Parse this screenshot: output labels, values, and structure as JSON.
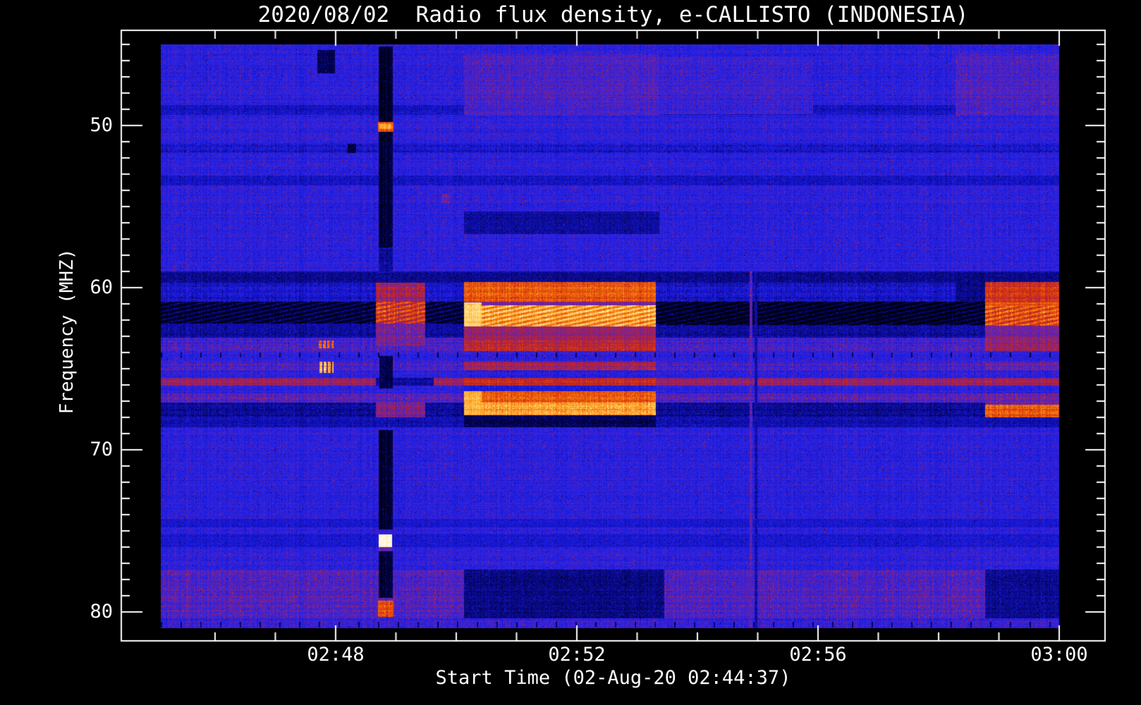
{
  "figure": {
    "background": "#000000",
    "text_color": "#ffffff"
  },
  "chart_data": {
    "type": "heatmap",
    "subtype": "radio-spectrogram",
    "title": "2020/08/02  Radio flux density, e-CALLISTO (INDONESIA)",
    "xlabel": "Start Time (02-Aug-20 02:44:37)",
    "ylabel": "Frequency (MHZ)",
    "legend_position": "none",
    "grid": false,
    "x_axis": {
      "unit": "minutes_after_0200",
      "range_min": [
        45.1,
        60.0
      ],
      "ticks": [
        {
          "t": 48,
          "label": "02:48"
        },
        {
          "t": 52,
          "label": "02:52"
        },
        {
          "t": 56,
          "label": "02:56"
        },
        {
          "t": 60,
          "label": "03:00"
        }
      ],
      "minor_tick_interval_min": 1
    },
    "y_axis": {
      "range_mhz": [
        45.0,
        81.0
      ],
      "inverted": true,
      "ticks": [
        {
          "f": 50,
          "label": "50"
        },
        {
          "f": 60,
          "label": "60"
        },
        {
          "f": 70,
          "label": "70"
        },
        {
          "f": 80,
          "label": "80"
        }
      ],
      "minor_tick_interval_mhz": 1
    },
    "background_level": 0.4,
    "palette": {
      "stops": [
        [
          0.0,
          "#000000"
        ],
        [
          0.1,
          "#00003a"
        ],
        [
          0.2,
          "#0a0a8a"
        ],
        [
          0.3,
          "#1515cf"
        ],
        [
          0.4,
          "#2424ea"
        ],
        [
          0.48,
          "#4a22c8"
        ],
        [
          0.56,
          "#7a2298"
        ],
        [
          0.63,
          "#aa2248"
        ],
        [
          0.69,
          "#cc2418"
        ],
        [
          0.77,
          "#e24808"
        ],
        [
          0.85,
          "#f07010"
        ],
        [
          0.92,
          "#ff9820"
        ],
        [
          0.98,
          "#ffc850"
        ],
        [
          1.05,
          "#ffeeb0"
        ],
        [
          1.1,
          "#ffffff"
        ]
      ]
    },
    "artifact_dash_rows": [
      {
        "f0": 64.0,
        "f1": 64.3
      },
      {
        "f0": 80.6,
        "f1": 80.95
      }
    ],
    "features": [
      {
        "label": "row-48.9-dark",
        "t0": 45.1,
        "t1": 60,
        "f0": 48.75,
        "f1": 49.35,
        "v": 0.3,
        "n": 0.1
      },
      {
        "label": "row-51.4-speckle",
        "t0": 45.1,
        "t1": 60,
        "f0": 51.15,
        "f1": 51.7,
        "v": 0.31,
        "n": 0.14
      },
      {
        "label": "row-53.4-dark",
        "t0": 45.1,
        "t1": 60,
        "f0": 53.1,
        "f1": 53.7,
        "v": 0.29,
        "n": 0.1
      },
      {
        "label": "band-59.3-dark",
        "t0": 45.1,
        "t1": 60,
        "f0": 59.0,
        "f1": 59.7,
        "v": 0.21,
        "n": 0.08
      },
      {
        "label": "band-60.3",
        "t0": 45.1,
        "t1": 60,
        "f0": 59.7,
        "f1": 60.87,
        "v": 0.31,
        "n": 0.14
      },
      {
        "label": "rfi-61.5-black",
        "t0": 45.1,
        "t1": 60,
        "f0": 60.87,
        "f1": 62.2,
        "v": 0.1,
        "n": 0.06,
        "fx": "wave"
      },
      {
        "label": "band-62.6-dark",
        "t0": 45.1,
        "t1": 60,
        "f0": 62.2,
        "f1": 63.1,
        "v": 0.23,
        "n": 0.1
      },
      {
        "label": "band-63.5-mix",
        "t0": 45.1,
        "t1": 60,
        "f0": 63.1,
        "f1": 63.9,
        "v": 0.45,
        "n": 0.16
      },
      {
        "label": "band-64.8-mix",
        "t0": 45.1,
        "t1": 60,
        "f0": 64.55,
        "f1": 65.1,
        "v": 0.46,
        "n": 0.15
      },
      {
        "label": "rfi-65.8-red",
        "t0": 45.1,
        "t1": 60,
        "f0": 65.55,
        "f1": 66.05,
        "v": 0.6,
        "n": 0.13
      },
      {
        "label": "band-66.8-mix",
        "t0": 45.1,
        "t1": 60,
        "f0": 66.5,
        "f1": 67.1,
        "v": 0.48,
        "n": 0.15
      },
      {
        "label": "band-67.5-dark",
        "t0": 45.1,
        "t1": 60,
        "f0": 67.1,
        "f1": 67.95,
        "v": 0.21,
        "n": 0.1
      },
      {
        "label": "band-68.3-dark",
        "t0": 45.1,
        "t1": 60,
        "f0": 67.95,
        "f1": 68.6,
        "v": 0.26,
        "n": 0.09
      },
      {
        "label": "row-74.5-dark",
        "t0": 45.1,
        "t1": 60,
        "f0": 74.25,
        "f1": 74.8,
        "v": 0.31,
        "n": 0.08
      },
      {
        "label": "row-75.6-dark",
        "t0": 45.1,
        "t1": 60,
        "f0": 75.2,
        "f1": 76.0,
        "v": 0.32,
        "n": 0.08
      },
      {
        "label": "band-78.9-purple",
        "t0": 45.1,
        "t1": 60,
        "f0": 77.4,
        "f1": 80.4,
        "v": 0.48,
        "n": 0.14
      },
      {
        "label": "band-80.7",
        "t0": 45.1,
        "t1": 60,
        "f0": 80.4,
        "f1": 81.0,
        "v": 0.42,
        "n": 0.14
      },
      {
        "label": "top-purple-burst",
        "t0": 50.13,
        "t1": 53.37,
        "f0": 45.55,
        "f1": 49.4,
        "v": 0.47,
        "n": 0.12
      },
      {
        "label": "top-purple-mid",
        "t0": 53.37,
        "t1": 55.92,
        "f0": 45.8,
        "f1": 49.3,
        "v": 0.44,
        "n": 0.12
      },
      {
        "label": "top-purple-right",
        "t0": 58.28,
        "t1": 60,
        "f0": 45.55,
        "f1": 49.4,
        "v": 0.47,
        "n": 0.12
      },
      {
        "label": "dark-56-burst-col",
        "t0": 50.13,
        "t1": 53.37,
        "f0": 55.3,
        "f1": 56.7,
        "v": 0.23,
        "n": 0.08
      },
      {
        "label": "dark-bottom-burst-col",
        "t0": 50.13,
        "t1": 53.45,
        "f0": 77.4,
        "f1": 80.4,
        "v": 0.19,
        "n": 0.08
      },
      {
        "label": "dark-bottom-right",
        "t0": 58.77,
        "t1": 60,
        "f0": 77.4,
        "f1": 80.4,
        "v": 0.21,
        "n": 0.08
      },
      {
        "label": "rfi-extra-dark-mid",
        "t0": 53.37,
        "t1": 58.28,
        "f0": 60.87,
        "f1": 62.3,
        "v": 0.07,
        "n": 0.05,
        "fx": "wave"
      },
      {
        "label": "preburst-blob-60.3",
        "t0": 48.67,
        "t1": 49.49,
        "f0": 59.7,
        "f1": 60.87,
        "v": 0.62,
        "n": 0.15
      },
      {
        "label": "preburst-blob-61.5",
        "t0": 48.67,
        "t1": 49.49,
        "f0": 60.87,
        "f1": 62.2,
        "v": 0.72,
        "n": 0.18,
        "fx": "wave"
      },
      {
        "label": "preburst-blob-62.6",
        "t0": 48.67,
        "t1": 49.49,
        "f0": 62.2,
        "f1": 63.1,
        "v": 0.54,
        "n": 0.12
      },
      {
        "label": "preburst-blob-63.3",
        "t0": 48.67,
        "t1": 49.49,
        "f0": 63.1,
        "f1": 63.6,
        "v": 0.55,
        "n": 0.15
      },
      {
        "label": "preburst-blob-67.5",
        "t0": 48.67,
        "t1": 49.49,
        "f0": 67.1,
        "f1": 68.0,
        "v": 0.55,
        "n": 0.15
      },
      {
        "label": "redline-gap-dark",
        "t0": 48.67,
        "t1": 49.63,
        "f0": 65.55,
        "f1": 66.05,
        "v": 0.23,
        "n": 0.1
      },
      {
        "label": "burst-60.3",
        "t0": 50.13,
        "t1": 53.31,
        "f0": 59.67,
        "f1": 60.85,
        "v": 0.8,
        "n": 0.14
      },
      {
        "label": "burst-61.0-darkline",
        "t0": 50.13,
        "t1": 53.31,
        "f0": 60.85,
        "f1": 61.1,
        "v": 0.55,
        "n": 0.1
      },
      {
        "label": "burst-61.8-bright",
        "t0": 50.13,
        "t1": 53.31,
        "f0": 61.1,
        "f1": 62.4,
        "v": 0.92,
        "n": 0.12,
        "fx": "wave"
      },
      {
        "label": "burst-62.8-maroon",
        "t0": 50.13,
        "t1": 53.31,
        "f0": 62.4,
        "f1": 63.2,
        "v": 0.6,
        "n": 0.12
      },
      {
        "label": "burst-63.5",
        "t0": 50.13,
        "t1": 53.31,
        "f0": 63.2,
        "f1": 63.9,
        "v": 0.66,
        "n": 0.14
      },
      {
        "label": "burst-64.2-gap",
        "t0": 50.13,
        "t1": 53.31,
        "f0": 63.9,
        "f1": 64.55,
        "v": 0.4,
        "n": 0.14
      },
      {
        "label": "burst-64.8",
        "t0": 50.13,
        "t1": 53.31,
        "f0": 64.55,
        "f1": 65.1,
        "v": 0.62,
        "n": 0.14
      },
      {
        "label": "burst-65.3-gap",
        "t0": 50.13,
        "t1": 53.31,
        "f0": 65.1,
        "f1": 65.55,
        "v": 0.38,
        "n": 0.12
      },
      {
        "label": "burst-65.8",
        "t0": 50.13,
        "t1": 53.31,
        "f0": 65.55,
        "f1": 66.05,
        "v": 0.68,
        "n": 0.13
      },
      {
        "label": "burst-66.2-gap",
        "t0": 50.13,
        "t1": 53.31,
        "f0": 66.05,
        "f1": 66.4,
        "v": 0.35,
        "n": 0.12
      },
      {
        "label": "burst-66.8",
        "t0": 50.13,
        "t1": 53.31,
        "f0": 66.4,
        "f1": 67.1,
        "v": 0.8,
        "n": 0.14
      },
      {
        "label": "burst-67.5-bright",
        "t0": 50.13,
        "t1": 53.31,
        "f0": 67.1,
        "f1": 67.85,
        "v": 0.92,
        "n": 0.13
      },
      {
        "label": "burst-68.2-black",
        "t0": 50.13,
        "t1": 53.31,
        "f0": 67.85,
        "f1": 68.6,
        "v": 0.13,
        "n": 0.07
      },
      {
        "label": "burst-onset-bright-a",
        "t0": 50.13,
        "t1": 50.42,
        "f0": 60.9,
        "f1": 62.4,
        "v": 1.0,
        "n": 0.08
      },
      {
        "label": "burst-onset-bright-b",
        "t0": 50.13,
        "t1": 50.42,
        "f0": 66.4,
        "f1": 67.85,
        "v": 0.95,
        "n": 0.08
      },
      {
        "label": "right-dark-60",
        "t0": 58.28,
        "t1": 58.77,
        "f0": 59.0,
        "f1": 60.87,
        "v": 0.19,
        "n": 0.08
      },
      {
        "label": "right-dark-61.5",
        "t0": 58.28,
        "t1": 58.77,
        "f0": 60.87,
        "f1": 62.3,
        "v": 0.08,
        "n": 0.05,
        "fx": "wave"
      },
      {
        "label": "rburst-60.3",
        "t0": 58.77,
        "t1": 60,
        "f0": 59.67,
        "f1": 60.9,
        "v": 0.72,
        "n": 0.14
      },
      {
        "label": "rburst-61.0-line",
        "t0": 58.77,
        "t1": 60,
        "f0": 60.9,
        "f1": 61.15,
        "v": 0.8,
        "n": 0.12
      },
      {
        "label": "rburst-61.8",
        "t0": 58.77,
        "t1": 60,
        "f0": 61.15,
        "f1": 62.35,
        "v": 0.78,
        "n": 0.16,
        "fx": "wave"
      },
      {
        "label": "rburst-62.7-maroon",
        "t0": 58.77,
        "t1": 60,
        "f0": 62.35,
        "f1": 63.1,
        "v": 0.55,
        "n": 0.12
      },
      {
        "label": "rburst-63.5",
        "t0": 58.77,
        "t1": 60,
        "f0": 63.1,
        "f1": 63.9,
        "v": 0.6,
        "n": 0.14
      },
      {
        "label": "rburst-64.8",
        "t0": 58.77,
        "t1": 60,
        "f0": 64.55,
        "f1": 65.1,
        "v": 0.52,
        "n": 0.14
      },
      {
        "label": "rburst-65.8",
        "t0": 58.77,
        "t1": 60,
        "f0": 65.55,
        "f1": 66.05,
        "v": 0.62,
        "n": 0.13
      },
      {
        "label": "rburst-66.8",
        "t0": 58.77,
        "t1": 60,
        "f0": 66.5,
        "f1": 67.2,
        "v": 0.52,
        "n": 0.14
      },
      {
        "label": "rburst-67.6-bright",
        "t0": 58.77,
        "t1": 60,
        "f0": 67.2,
        "f1": 68.0,
        "v": 0.8,
        "n": 0.15
      },
      {
        "label": "vline-red",
        "t0": 54.86,
        "t1": 54.91,
        "f0": 59.0,
        "f1": 81.0,
        "v": 0.5,
        "n": 0.15
      },
      {
        "label": "vline-dark",
        "t0": 54.95,
        "t1": 55.0,
        "f0": 59.0,
        "f1": 81.0,
        "v": 0.25,
        "n": 0.1
      },
      {
        "label": "smudge-top-dark",
        "t0": 47.7,
        "t1": 47.99,
        "f0": 45.35,
        "f1": 46.8,
        "v": 0.13,
        "n": 0.08
      },
      {
        "label": "dot-51.4-dark",
        "t0": 48.2,
        "t1": 48.34,
        "f0": 51.15,
        "f1": 51.7,
        "v": 0.1,
        "n": 0.05
      },
      {
        "label": "dot-54.5-red",
        "t0": 49.75,
        "t1": 49.9,
        "f0": 54.2,
        "f1": 54.8,
        "v": 0.5,
        "n": 0.12
      },
      {
        "label": "orange-dashes-63.5",
        "t0": 47.72,
        "t1": 47.97,
        "f0": 63.28,
        "f1": 63.72,
        "v": 0.8,
        "n": 0.18,
        "fx": "dash"
      },
      {
        "label": "orange-blob-64.9",
        "t0": 47.73,
        "t1": 47.97,
        "f0": 64.55,
        "f1": 65.25,
        "v": 0.95,
        "n": 0.14,
        "fx": "dash"
      },
      {
        "label": "gap-stripe-top",
        "t0": 48.71,
        "t1": 48.95,
        "f0": 45.15,
        "f1": 50.95,
        "v": 0.03,
        "n": 0.02,
        "fx": "streak"
      },
      {
        "label": "gap-stripe-2",
        "t0": 48.71,
        "t1": 48.95,
        "f0": 50.95,
        "f1": 57.5,
        "v": 0.05,
        "n": 0.04,
        "fx": "streak"
      },
      {
        "label": "gap-stripe-3",
        "t0": 48.71,
        "t1": 48.95,
        "f0": 57.5,
        "f1": 59.7,
        "v": 0.22,
        "n": 0.1
      },
      {
        "label": "gap-stripe-4",
        "t0": 48.73,
        "t1": 48.95,
        "f0": 64.2,
        "f1": 66.2,
        "v": 0.12,
        "n": 0.06
      },
      {
        "label": "gap-stripe-5",
        "t0": 48.71,
        "t1": 48.95,
        "f0": 68.8,
        "f1": 74.9,
        "v": 0.04,
        "n": 0.03,
        "fx": "streak"
      },
      {
        "label": "gap-stripe-6",
        "t0": 48.71,
        "t1": 48.95,
        "f0": 76.25,
        "f1": 79.15,
        "v": 0.05,
        "n": 0.04,
        "fx": "streak"
      },
      {
        "label": "blob-red-50",
        "t0": 48.7,
        "t1": 48.96,
        "f0": 49.8,
        "f1": 50.4,
        "v": 0.8,
        "n": 0.12
      },
      {
        "label": "blob-red-50-core",
        "t0": 48.72,
        "t1": 48.93,
        "f0": 49.92,
        "f1": 50.22,
        "v": 0.92,
        "n": 0.08
      },
      {
        "label": "blob-white-75.6",
        "t0": 48.71,
        "t1": 48.94,
        "f0": 75.21,
        "f1": 76.0,
        "v": 1.08,
        "n": 0.05
      },
      {
        "label": "blob-white-fringe",
        "t0": 48.71,
        "t1": 48.94,
        "f0": 76.0,
        "f1": 76.25,
        "v": 0.5,
        "n": 0.12
      },
      {
        "label": "blob-red-79.8",
        "t0": 48.7,
        "t1": 48.96,
        "f0": 79.3,
        "f1": 80.3,
        "v": 0.78,
        "n": 0.14
      }
    ]
  }
}
